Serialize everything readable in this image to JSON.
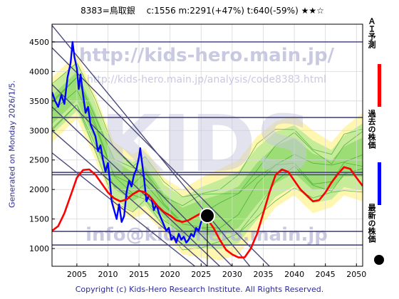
{
  "header": {
    "title": "8383=鳥取銀　 c:1556  m:2291(+47%)  t:640(-59%)  ★★☆",
    "side_label": "Generated on Monday 2026/1/5.",
    "copyright": "Copyright (c) Kids-Hero Research Institute. All Rights Reserved."
  },
  "watermarks": {
    "url": "http://kids-hero.main.jp/",
    "analysis_url": "http://kids-hero.main.jp/analysis/code8383.html",
    "logo": "KIDS",
    "email": "info@kids-hero.main.jp"
  },
  "legend": [
    {
      "label": "ＡＩ予測",
      "color": "#ff0000",
      "kind": "line"
    },
    {
      "label": "過去の株価",
      "color": "#0000ff",
      "kind": "line"
    },
    {
      "label": "最新の株価",
      "color": "#000000",
      "kind": "dot"
    }
  ],
  "chart_data": {
    "type": "line",
    "title": "8383=鳥取銀　 c:1556  m:2291(+47%)  t:640(-59%)  ★★☆",
    "xlim": [
      2001,
      2051
    ],
    "ylim": [
      700,
      4800
    ],
    "x_ticks": [
      "2005",
      "2010",
      "2015",
      "2020",
      "2025",
      "2030",
      "2035",
      "2040",
      "2045",
      "2050"
    ],
    "y_ticks": [
      "1000",
      "1500",
      "2000",
      "2500",
      "3000",
      "3500",
      "4000",
      "4500"
    ],
    "grid": true,
    "horizontal_levels": [
      4500,
      3220,
      2290,
      2250,
      1290,
      1060
    ],
    "trend_channel_lines": [
      {
        "x": [
          2001,
          2033
        ],
        "y": [
          4780,
          680
        ]
      },
      {
        "x": [
          2001,
          2036
        ],
        "y": [
          4400,
          700
        ]
      },
      {
        "x": [
          2001,
          2030
        ],
        "y": [
          3780,
          700
        ]
      },
      {
        "x": [
          2001,
          2028
        ],
        "y": [
          3400,
          700
        ]
      },
      {
        "x": [
          2001,
          2026
        ],
        "y": [
          3000,
          700
        ]
      },
      {
        "x": [
          2001,
          2024
        ],
        "y": [
          2620,
          700
        ]
      }
    ],
    "band_upper": [
      [
        2001,
        3900
      ],
      [
        2005,
        4300
      ],
      [
        2008,
        3600
      ],
      [
        2011,
        2800
      ],
      [
        2014,
        2600
      ],
      [
        2016,
        2700
      ],
      [
        2019,
        2200
      ],
      [
        2022,
        2000
      ],
      [
        2025,
        2200
      ],
      [
        2028,
        2350
      ],
      [
        2031,
        2500
      ],
      [
        2034,
        2900
      ],
      [
        2037,
        3150
      ],
      [
        2040,
        3250
      ],
      [
        2043,
        3000
      ],
      [
        2046,
        2800
      ],
      [
        2048,
        3050
      ],
      [
        2051,
        3300
      ]
    ],
    "band_lower": [
      [
        2001,
        2800
      ],
      [
        2005,
        3200
      ],
      [
        2008,
        2500
      ],
      [
        2011,
        1700
      ],
      [
        2014,
        1500
      ],
      [
        2016,
        1600
      ],
      [
        2019,
        1250
      ],
      [
        2022,
        900
      ],
      [
        2025,
        850
      ],
      [
        2028,
        800
      ],
      [
        2031,
        900
      ],
      [
        2034,
        1300
      ],
      [
        2037,
        1700
      ],
      [
        2040,
        1900
      ],
      [
        2043,
        1600
      ],
      [
        2046,
        1700
      ],
      [
        2048,
        1900
      ],
      [
        2051,
        1800
      ]
    ],
    "series": [
      {
        "name": "過去の株価",
        "color": "#0000ff",
        "points": [
          [
            2001.0,
            3650
          ],
          [
            2001.5,
            3500
          ],
          [
            2002.0,
            3400
          ],
          [
            2002.5,
            3600
          ],
          [
            2003.0,
            3450
          ],
          [
            2003.5,
            3900
          ],
          [
            2004.0,
            4150
          ],
          [
            2004.3,
            4500
          ],
          [
            2004.6,
            4250
          ],
          [
            2005.0,
            4050
          ],
          [
            2005.3,
            3700
          ],
          [
            2005.6,
            3950
          ],
          [
            2006.0,
            3600
          ],
          [
            2006.4,
            3300
          ],
          [
            2006.8,
            3400
          ],
          [
            2007.2,
            3100
          ],
          [
            2007.6,
            3000
          ],
          [
            2008.0,
            2900
          ],
          [
            2008.4,
            2650
          ],
          [
            2008.8,
            2750
          ],
          [
            2009.2,
            2500
          ],
          [
            2009.6,
            2300
          ],
          [
            2010.0,
            2450
          ],
          [
            2010.3,
            2150
          ],
          [
            2010.6,
            1800
          ],
          [
            2011.0,
            1650
          ],
          [
            2011.4,
            1500
          ],
          [
            2011.8,
            1750
          ],
          [
            2012.2,
            1450
          ],
          [
            2012.6,
            1550
          ],
          [
            2013.0,
            1950
          ],
          [
            2013.4,
            2150
          ],
          [
            2013.8,
            2050
          ],
          [
            2014.2,
            2250
          ],
          [
            2014.6,
            2350
          ],
          [
            2015.0,
            2550
          ],
          [
            2015.2,
            2700
          ],
          [
            2015.5,
            2450
          ],
          [
            2015.8,
            2200
          ],
          [
            2016.2,
            1800
          ],
          [
            2016.6,
            1900
          ],
          [
            2017.0,
            1850
          ],
          [
            2017.4,
            1650
          ],
          [
            2017.8,
            1750
          ],
          [
            2018.2,
            1600
          ],
          [
            2018.6,
            1500
          ],
          [
            2019.0,
            1400
          ],
          [
            2019.4,
            1300
          ],
          [
            2019.8,
            1350
          ],
          [
            2020.2,
            1150
          ],
          [
            2020.6,
            1200
          ],
          [
            2021.0,
            1100
          ],
          [
            2021.4,
            1250
          ],
          [
            2021.8,
            1150
          ],
          [
            2022.2,
            1200
          ],
          [
            2022.6,
            1100
          ],
          [
            2023.0,
            1150
          ],
          [
            2023.4,
            1250
          ],
          [
            2023.8,
            1200
          ],
          [
            2024.2,
            1350
          ],
          [
            2024.6,
            1300
          ],
          [
            2025.0,
            1450
          ],
          [
            2025.4,
            1500
          ],
          [
            2025.8,
            1556
          ]
        ]
      },
      {
        "name": "ＡＩ予測",
        "color": "#ff0000",
        "points": [
          [
            2001,
            1300
          ],
          [
            2002,
            1380
          ],
          [
            2003,
            1600
          ],
          [
            2004,
            1900
          ],
          [
            2005,
            2200
          ],
          [
            2006,
            2330
          ],
          [
            2007,
            2340
          ],
          [
            2008,
            2250
          ],
          [
            2009,
            2100
          ],
          [
            2010,
            1950
          ],
          [
            2011,
            1850
          ],
          [
            2012,
            1800
          ],
          [
            2013,
            1830
          ],
          [
            2014,
            1920
          ],
          [
            2015,
            1980
          ],
          [
            2016,
            1950
          ],
          [
            2017,
            1850
          ],
          [
            2018,
            1720
          ],
          [
            2019,
            1620
          ],
          [
            2020,
            1560
          ],
          [
            2021,
            1480
          ],
          [
            2022,
            1450
          ],
          [
            2023,
            1480
          ],
          [
            2024,
            1540
          ],
          [
            2025,
            1600
          ],
          [
            2026,
            1500
          ],
          [
            2027,
            1350
          ],
          [
            2028,
            1150
          ],
          [
            2029,
            980
          ],
          [
            2030,
            900
          ],
          [
            2031,
            850
          ],
          [
            2032,
            850
          ],
          [
            2033,
            1000
          ],
          [
            2034,
            1250
          ],
          [
            2035,
            1600
          ],
          [
            2036,
            1950
          ],
          [
            2037,
            2250
          ],
          [
            2038,
            2340
          ],
          [
            2039,
            2300
          ],
          [
            2040,
            2150
          ],
          [
            2041,
            2000
          ],
          [
            2042,
            1900
          ],
          [
            2043,
            1800
          ],
          [
            2044,
            1820
          ],
          [
            2045,
            1950
          ],
          [
            2046,
            2120
          ],
          [
            2047,
            2260
          ],
          [
            2048,
            2380
          ],
          [
            2049,
            2350
          ],
          [
            2050,
            2200
          ],
          [
            2051,
            2060
          ]
        ]
      }
    ],
    "latest_point": {
      "x": 2026,
      "y": 1556,
      "label": "最新の株価"
    }
  }
}
